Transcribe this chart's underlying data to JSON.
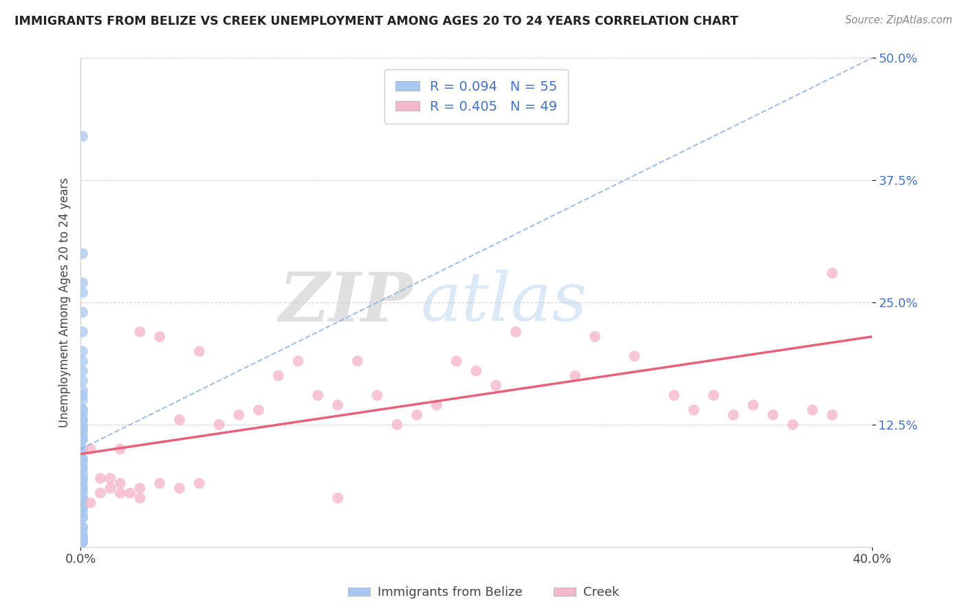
{
  "title": "IMMIGRANTS FROM BELIZE VS CREEK UNEMPLOYMENT AMONG AGES 20 TO 24 YEARS CORRELATION CHART",
  "source": "Source: ZipAtlas.com",
  "ylabel": "Unemployment Among Ages 20 to 24 years",
  "x_min": 0.0,
  "x_max": 0.4,
  "y_min": 0.0,
  "y_max": 0.5,
  "x_tick_labels": [
    "0.0%",
    "40.0%"
  ],
  "y_ticks": [
    0.125,
    0.25,
    0.375,
    0.5
  ],
  "y_tick_labels": [
    "12.5%",
    "25.0%",
    "37.5%",
    "50.0%"
  ],
  "color_blue": "#a8c8f0",
  "color_pink": "#f4b8cc",
  "color_blue_line": "#4472c4",
  "color_pink_line": "#e8607a",
  "color_blue_line_dash": "#8ab0e0",
  "legend_label1": "Immigrants from Belize",
  "legend_label2": "Creek",
  "watermark_zip": "ZIP",
  "watermark_atlas": "atlas",
  "blue_x": [
    0.001,
    0.001,
    0.001,
    0.001,
    0.001,
    0.001,
    0.001,
    0.001,
    0.001,
    0.001,
    0.001,
    0.001,
    0.001,
    0.001,
    0.001,
    0.001,
    0.001,
    0.001,
    0.001,
    0.001,
    0.001,
    0.001,
    0.001,
    0.001,
    0.001,
    0.001,
    0.001,
    0.001,
    0.001,
    0.001,
    0.001,
    0.001,
    0.001,
    0.001,
    0.001,
    0.001,
    0.001,
    0.001,
    0.001,
    0.001,
    0.001,
    0.001,
    0.001,
    0.001,
    0.001,
    0.001,
    0.001,
    0.001,
    0.001,
    0.001,
    0.001,
    0.001,
    0.001,
    0.001,
    0.001
  ],
  "blue_y": [
    0.42,
    0.3,
    0.27,
    0.26,
    0.24,
    0.22,
    0.2,
    0.19,
    0.18,
    0.17,
    0.16,
    0.155,
    0.15,
    0.14,
    0.135,
    0.13,
    0.125,
    0.12,
    0.115,
    0.11,
    0.1,
    0.09,
    0.085,
    0.08,
    0.075,
    0.07,
    0.065,
    0.06,
    0.055,
    0.05,
    0.045,
    0.04,
    0.035,
    0.03,
    0.02,
    0.015,
    0.01,
    0.005,
    0.005,
    0.005,
    0.01,
    0.01,
    0.02,
    0.03,
    0.04,
    0.05,
    0.06,
    0.07,
    0.08,
    0.09,
    0.1,
    0.11,
    0.12,
    0.13,
    0.14
  ],
  "pink_x": [
    0.005,
    0.01,
    0.015,
    0.02,
    0.02,
    0.03,
    0.03,
    0.04,
    0.05,
    0.06,
    0.07,
    0.08,
    0.09,
    0.1,
    0.11,
    0.12,
    0.13,
    0.14,
    0.15,
    0.16,
    0.17,
    0.18,
    0.19,
    0.2,
    0.21,
    0.22,
    0.25,
    0.26,
    0.28,
    0.3,
    0.31,
    0.32,
    0.33,
    0.34,
    0.35,
    0.36,
    0.37,
    0.38,
    0.005,
    0.01,
    0.015,
    0.02,
    0.025,
    0.03,
    0.04,
    0.05,
    0.06,
    0.38,
    0.13
  ],
  "pink_y": [
    0.1,
    0.07,
    0.07,
    0.1,
    0.055,
    0.05,
    0.22,
    0.215,
    0.13,
    0.2,
    0.125,
    0.135,
    0.14,
    0.175,
    0.19,
    0.155,
    0.145,
    0.19,
    0.155,
    0.125,
    0.135,
    0.145,
    0.19,
    0.18,
    0.165,
    0.22,
    0.175,
    0.215,
    0.195,
    0.155,
    0.14,
    0.155,
    0.135,
    0.145,
    0.135,
    0.125,
    0.14,
    0.28,
    0.045,
    0.055,
    0.06,
    0.065,
    0.055,
    0.06,
    0.065,
    0.06,
    0.065,
    0.135,
    0.05
  ],
  "blue_line_x0": 0.0,
  "blue_line_y0": 0.1,
  "blue_line_x1": 0.4,
  "blue_line_y1": 0.5,
  "pink_line_x0": 0.0,
  "pink_line_y0": 0.095,
  "pink_line_x1": 0.4,
  "pink_line_y1": 0.215
}
